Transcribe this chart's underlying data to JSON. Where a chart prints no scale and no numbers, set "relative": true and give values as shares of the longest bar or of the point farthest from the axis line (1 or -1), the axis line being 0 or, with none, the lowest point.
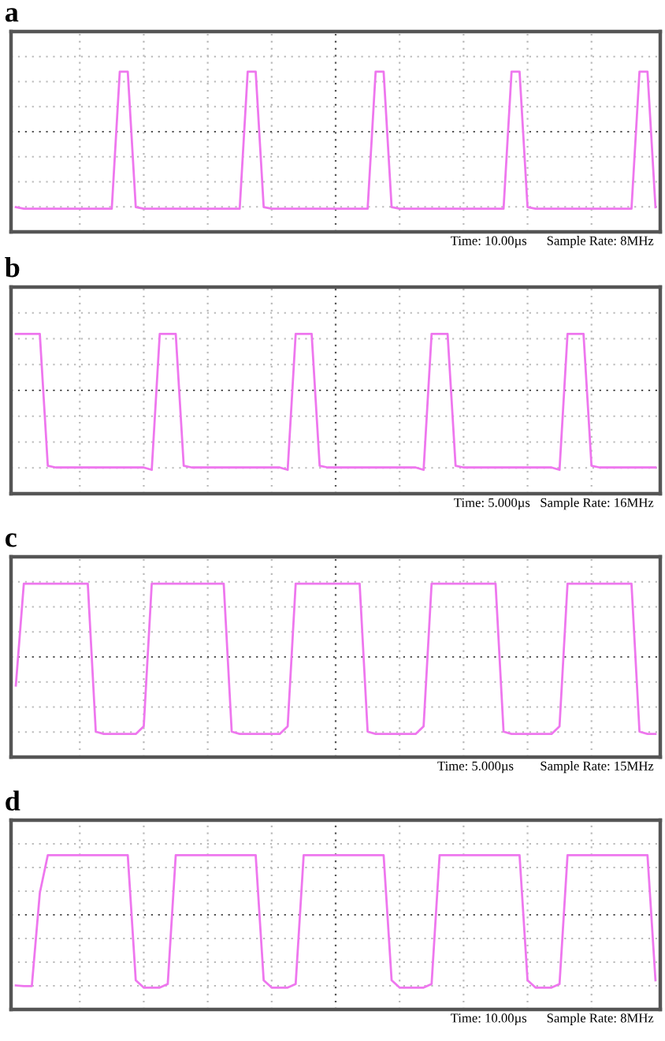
{
  "chart_data": [
    {
      "type": "line",
      "ref_lines": [
        {
          "axis": "y",
          "value": 0,
          "color": "#555555",
          "line_style": "dotted"
        }
      ],
      "title": "a",
      "relative": true,
      "grid": true,
      "annotations": [
        "Time: 10.00µs      Sample Rate: 8MHz"
      ],
      "categories": [
        null,
        null,
        null,
        null,
        null,
        null,
        null,
        null,
        null,
        null,
        null,
        null,
        null,
        null,
        null,
        null,
        null,
        null,
        null,
        null,
        null,
        null,
        null,
        null,
        null,
        null,
        null,
        null,
        null,
        null,
        null,
        null,
        null,
        null,
        null,
        null,
        null,
        null,
        null,
        null,
        null,
        null,
        null,
        null,
        null,
        null,
        null,
        null,
        null,
        null,
        null,
        null,
        null,
        null,
        null,
        null,
        null,
        null,
        null,
        null,
        null,
        null,
        null,
        null,
        null,
        null,
        null,
        null,
        null,
        null,
        null,
        null,
        null,
        null,
        null,
        null,
        null,
        null,
        null,
        null,
        null
      ],
      "series": [
        {
          "color": "#ee77ee",
          "values": [
            -0.98,
            -1,
            -1,
            -1,
            -1,
            -1,
            -1,
            -1,
            -1,
            -1,
            -1,
            -1,
            -1,
            0.78,
            0.78,
            -0.98,
            -1,
            -1,
            -1,
            -1,
            -1,
            -1,
            -1,
            -1,
            -1,
            -1,
            -1,
            -1,
            -1,
            0.78,
            0.78,
            -0.98,
            -1,
            -1,
            -1,
            -1,
            -1,
            -1,
            -1,
            -1,
            -1,
            -1,
            -1,
            -1,
            -1,
            0.78,
            0.78,
            -0.98,
            -1,
            -1,
            -1,
            -1,
            -1,
            -1,
            -1,
            -1,
            -1,
            -1,
            -1,
            -1,
            -1,
            -1,
            0.78,
            0.78,
            -0.98,
            -1,
            -1,
            -1,
            -1,
            -1,
            -1,
            -1,
            -1,
            -1,
            -1,
            -1,
            -1,
            -1,
            0.78,
            0.78,
            -0.98
          ]
        }
      ]
    },
    {
      "type": "line",
      "ref_lines": [
        {
          "axis": "y",
          "value": 0,
          "color": "#555555",
          "line_style": "dotted"
        }
      ],
      "title": "b",
      "relative": true,
      "grid": true,
      "annotations": [
        "Time: 5.000µs   Sample Rate: 16MHz"
      ],
      "categories": [
        null,
        null,
        null,
        null,
        null,
        null,
        null,
        null,
        null,
        null,
        null,
        null,
        null,
        null,
        null,
        null,
        null,
        null,
        null,
        null,
        null,
        null,
        null,
        null,
        null,
        null,
        null,
        null,
        null,
        null,
        null,
        null,
        null,
        null,
        null,
        null,
        null,
        null,
        null,
        null,
        null,
        null,
        null,
        null,
        null,
        null,
        null,
        null,
        null,
        null,
        null,
        null,
        null,
        null,
        null,
        null,
        null,
        null,
        null,
        null,
        null,
        null,
        null,
        null,
        null,
        null,
        null,
        null,
        null,
        null,
        null,
        null,
        null,
        null,
        null,
        null,
        null,
        null,
        null,
        null,
        null
      ],
      "series": [
        {
          "color": "#ee77ee",
          "values": [
            0.71,
            0.71,
            0.71,
            0.71,
            -0.95,
            -0.97,
            -0.97,
            -0.97,
            -0.97,
            -0.97,
            -0.97,
            -0.97,
            -0.97,
            -0.97,
            -0.97,
            -0.97,
            -0.97,
            -1,
            0.71,
            0.71,
            0.71,
            -0.95,
            -0.97,
            -0.97,
            -0.97,
            -0.97,
            -0.97,
            -0.97,
            -0.97,
            -0.97,
            -0.97,
            -0.97,
            -0.97,
            -0.97,
            -1,
            0.71,
            0.71,
            0.71,
            -0.95,
            -0.97,
            -0.97,
            -0.97,
            -0.97,
            -0.97,
            -0.97,
            -0.97,
            -0.97,
            -0.97,
            -0.97,
            -0.97,
            -0.97,
            -1,
            0.71,
            0.71,
            0.71,
            -0.95,
            -0.97,
            -0.97,
            -0.97,
            -0.97,
            -0.97,
            -0.97,
            -0.97,
            -0.97,
            -0.97,
            -0.97,
            -0.97,
            -0.97,
            -1,
            0.71,
            0.71,
            0.71,
            -0.95,
            -0.97,
            -0.97,
            -0.97,
            -0.97,
            -0.97,
            -0.97,
            -0.97,
            -0.97
          ]
        }
      ]
    },
    {
      "type": "line",
      "ref_lines": [
        {
          "axis": "y",
          "value": 0,
          "color": "#555555",
          "line_style": "dotted"
        }
      ],
      "title": "c",
      "relative": true,
      "grid": true,
      "annotations": [
        "Time: 5.000µs        Sample Rate: 15MHz"
      ],
      "categories": [
        null,
        null,
        null,
        null,
        null,
        null,
        null,
        null,
        null,
        null,
        null,
        null,
        null,
        null,
        null,
        null,
        null,
        null,
        null,
        null,
        null,
        null,
        null,
        null,
        null,
        null,
        null,
        null,
        null,
        null,
        null,
        null,
        null,
        null,
        null,
        null,
        null,
        null,
        null,
        null,
        null,
        null,
        null,
        null,
        null,
        null,
        null,
        null,
        null,
        null,
        null,
        null,
        null,
        null,
        null,
        null,
        null,
        null,
        null,
        null,
        null,
        null,
        null,
        null,
        null,
        null,
        null,
        null,
        null,
        null,
        null,
        null,
        null,
        null,
        null,
        null,
        null,
        null,
        null,
        null,
        null
      ],
      "series": [
        {
          "color": "#ee77ee",
          "values": [
            -0.37,
            0.95,
            0.95,
            0.95,
            0.95,
            0.95,
            0.95,
            0.95,
            0.95,
            0.95,
            -0.97,
            -1,
            -1,
            -1,
            -1,
            -1,
            -0.9,
            0.95,
            0.95,
            0.95,
            0.95,
            0.95,
            0.95,
            0.95,
            0.95,
            0.95,
            0.95,
            -0.97,
            -1,
            -1,
            -1,
            -1,
            -1,
            -1,
            -0.9,
            0.95,
            0.95,
            0.95,
            0.95,
            0.95,
            0.95,
            0.95,
            0.95,
            0.95,
            -0.97,
            -1,
            -1,
            -1,
            -1,
            -1,
            -1,
            -0.9,
            0.95,
            0.95,
            0.95,
            0.95,
            0.95,
            0.95,
            0.95,
            0.95,
            0.95,
            -0.97,
            -1,
            -1,
            -1,
            -1,
            -1,
            -1,
            -0.9,
            0.95,
            0.95,
            0.95,
            0.95,
            0.95,
            0.95,
            0.95,
            0.95,
            0.95,
            -0.97,
            -1,
            -1
          ]
        }
      ]
    },
    {
      "type": "line",
      "ref_lines": [
        {
          "axis": "y",
          "value": 0,
          "color": "#555555",
          "line_style": "dotted"
        }
      ],
      "title": "d",
      "relative": true,
      "grid": true,
      "annotations": [
        "Time: 10.00µs      Sample Rate: 8MHz"
      ],
      "categories": [
        null,
        null,
        null,
        null,
        null,
        null,
        null,
        null,
        null,
        null,
        null,
        null,
        null,
        null,
        null,
        null,
        null,
        null,
        null,
        null,
        null,
        null,
        null,
        null,
        null,
        null,
        null,
        null,
        null,
        null,
        null,
        null,
        null,
        null,
        null,
        null,
        null,
        null,
        null,
        null,
        null,
        null,
        null,
        null,
        null,
        null,
        null,
        null,
        null,
        null,
        null,
        null,
        null,
        null,
        null,
        null,
        null,
        null,
        null,
        null,
        null,
        null,
        null,
        null,
        null,
        null,
        null,
        null,
        null,
        null,
        null,
        null,
        null,
        null,
        null,
        null,
        null,
        null,
        null,
        null,
        null
      ],
      "series": [
        {
          "color": "#ee77ee",
          "values": [
            -0.97,
            -0.98,
            -0.98,
            0.3,
            0.82,
            0.82,
            0.82,
            0.82,
            0.82,
            0.82,
            0.82,
            0.82,
            0.82,
            0.82,
            0.82,
            -0.9,
            -1,
            -1,
            -1,
            -0.95,
            0.82,
            0.82,
            0.82,
            0.82,
            0.82,
            0.82,
            0.82,
            0.82,
            0.82,
            0.82,
            0.82,
            -0.9,
            -1,
            -1,
            -1,
            -0.95,
            0.82,
            0.82,
            0.82,
            0.82,
            0.82,
            0.82,
            0.82,
            0.82,
            0.82,
            0.82,
            0.82,
            -0.9,
            -1,
            -1,
            -1,
            -1,
            -0.95,
            0.82,
            0.82,
            0.82,
            0.82,
            0.82,
            0.82,
            0.82,
            0.82,
            0.82,
            0.82,
            0.82,
            -0.9,
            -1,
            -1,
            -1,
            -0.95,
            0.82,
            0.82,
            0.82,
            0.82,
            0.82,
            0.82,
            0.82,
            0.82,
            0.82,
            0.82,
            0.82,
            -0.9
          ]
        }
      ]
    }
  ]
}
